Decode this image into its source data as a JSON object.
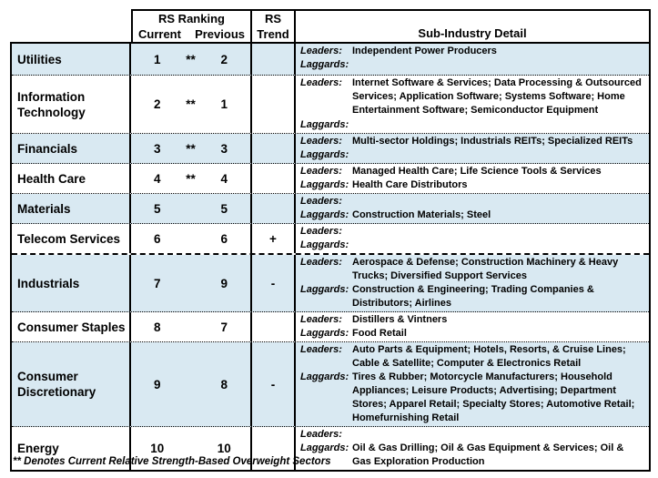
{
  "header": {
    "rs_ranking": "RS Ranking",
    "current": "Current",
    "previous": "Previous",
    "rs_trend_line1": "RS",
    "rs_trend_line2": "Trend",
    "sub_industry": "Sub-Industry Detail"
  },
  "labels": {
    "leaders": "Leaders:",
    "laggards": "Laggards:"
  },
  "footnote": "** Denotes Current Relative Strength-Based Overweight Sectors",
  "colors": {
    "row_highlight": "#d9e9f2",
    "border": "#000000"
  },
  "sectors": [
    {
      "name": "Utilities",
      "current": "1",
      "overweight_mark": "**",
      "previous": "2",
      "trend": "",
      "leaders": "Independent Power Producers",
      "laggards": ""
    },
    {
      "name": "Information Technology",
      "current": "2",
      "overweight_mark": "**",
      "previous": "1",
      "trend": "",
      "leaders": "Internet Software & Services; Data Processing & Outsourced Services; Application Software; Systems Software; Home Entertainment Software; Semiconductor Equipment",
      "laggards": ""
    },
    {
      "name": "Financials",
      "current": "3",
      "overweight_mark": "**",
      "previous": "3",
      "trend": "",
      "leaders": "Multi-sector Holdings; Industrials REITs; Specialized REITs",
      "laggards": ""
    },
    {
      "name": "Health Care",
      "current": "4",
      "overweight_mark": "**",
      "previous": "4",
      "trend": "",
      "leaders": "Managed Health Care; Life Science Tools & Services",
      "laggards": "Health Care Distributors"
    },
    {
      "name": "Materials",
      "current": "5",
      "overweight_mark": "",
      "previous": "5",
      "trend": "",
      "leaders": "",
      "laggards": "Construction Materials; Steel"
    },
    {
      "name": "Telecom Services",
      "current": "6",
      "overweight_mark": "",
      "previous": "6",
      "trend": "+",
      "leaders": "",
      "laggards": ""
    },
    {
      "name": "Industrials",
      "current": "7",
      "overweight_mark": "",
      "previous": "9",
      "trend": "-",
      "leaders": "Aerospace & Defense; Construction Machinery & Heavy Trucks; Diversified Support Services",
      "laggards": "Construction & Engineering; Trading Companies & Distributors; Airlines"
    },
    {
      "name": "Consumer Staples",
      "current": "8",
      "overweight_mark": "",
      "previous": "7",
      "trend": "",
      "leaders": "Distillers & Vintners",
      "laggards": "Food Retail"
    },
    {
      "name": "Consumer Discretionary",
      "current": "9",
      "overweight_mark": "",
      "previous": "8",
      "trend": "-",
      "leaders": "Auto Parts & Equipment; Hotels, Resorts, & Cruise Lines; Cable & Satellite; Computer & Electronics Retail",
      "laggards": "Tires & Rubber; Motorcycle Manufacturers; Household Appliances; Leisure Products; Advertising; Department Stores; Apparel Retail; Specialty Stores; Automotive Retail; Homefurnishing Retail"
    },
    {
      "name": "Energy",
      "current": "10",
      "overweight_mark": "",
      "previous": "10",
      "trend": "",
      "leaders": "",
      "laggards": "Oil & Gas Drilling; Oil & Gas Equipment & Services; Oil & Gas Exploration Production"
    }
  ]
}
